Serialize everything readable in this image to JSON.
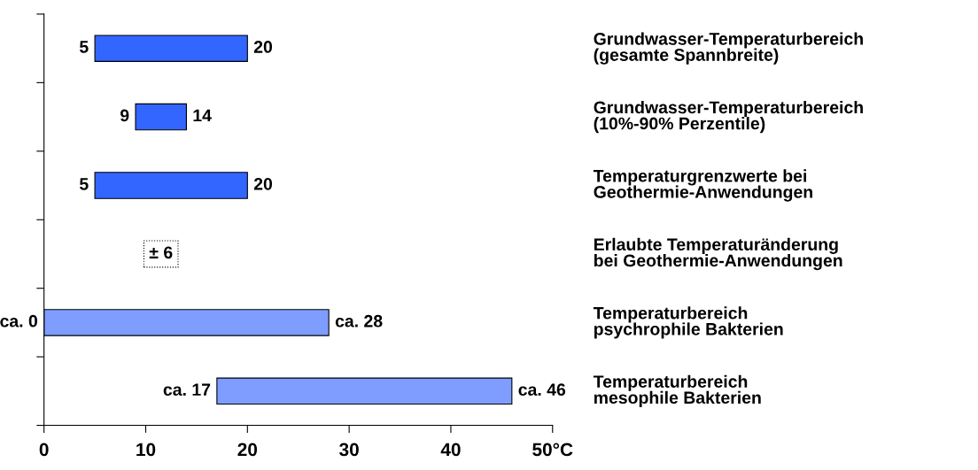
{
  "chart_data": {
    "type": "bar",
    "orientation": "horizontal",
    "categories": [
      "Grundwasser-Temperaturbereich\n(gesamte Spannbreite)",
      "Grundwasser-Temperaturbereich\n(10%-90% Perzentile)",
      "Temperaturgrenzwerte bei\nGeothermie-Anwendungen",
      "Erlaubte Temperaturänderung\nbei Geothermie-Anwendungen",
      "Temperaturbereich\npsychrophile Bakterien",
      "Temperaturbereich\nmesophile Bakterien"
    ],
    "base": [
      5,
      9,
      5,
      null,
      0,
      17
    ],
    "values": [
      15,
      5,
      15,
      null,
      28,
      29
    ],
    "colors": [
      "#3366ff",
      "#3366ff",
      "#3366ff",
      "#3366ff",
      "#7f9dff",
      "#7f9dff"
    ],
    "xlim": [
      0,
      50
    ],
    "xticks": [
      0,
      10,
      20,
      30,
      40,
      {
        "value": 50,
        "label": "50°C"
      }
    ],
    "grid": false,
    "legend": false,
    "annotations": [
      {
        "text": "5",
        "x": 5,
        "y": "Grundwasser-Temperaturbereich\n(gesamte Spannbreite)"
      },
      {
        "text": "20",
        "x": 20,
        "y": "Grundwasser-Temperaturbereich\n(gesamte Spannbreite)"
      },
      {
        "text": "9",
        "x": 9,
        "y": "Grundwasser-Temperaturbereich\n(10%-90% Perzentile)"
      },
      {
        "text": "14",
        "x": 14,
        "y": "Grundwasser-Temperaturbereich\n(10%-90% Perzentile)"
      },
      {
        "text": "5",
        "x": 5,
        "y": "Temperaturgrenzwerte bei\nGeothermie-Anwendungen"
      },
      {
        "text": "20",
        "x": 20,
        "y": "Temperaturgrenzwerte bei\nGeothermie-Anwendungen"
      },
      {
        "text": "± 6",
        "x": 11.5,
        "y": "Erlaubte Temperaturänderung\nbei Geothermie-Anwendungen"
      },
      {
        "text": "ca. 0",
        "x": 0,
        "y": "Temperaturbereich\npsychrophile Bakterien"
      },
      {
        "text": "ca. 28",
        "x": 28,
        "y": "Temperaturbereich\npsychrophile Bakterien"
      },
      {
        "text": "ca. 17",
        "x": 17,
        "y": "Temperaturbereich\nmesophile Bakterien"
      },
      {
        "text": "ca. 46",
        "x": 46,
        "y": "Temperaturbereich\nmesophile Bakterien"
      }
    ]
  }
}
